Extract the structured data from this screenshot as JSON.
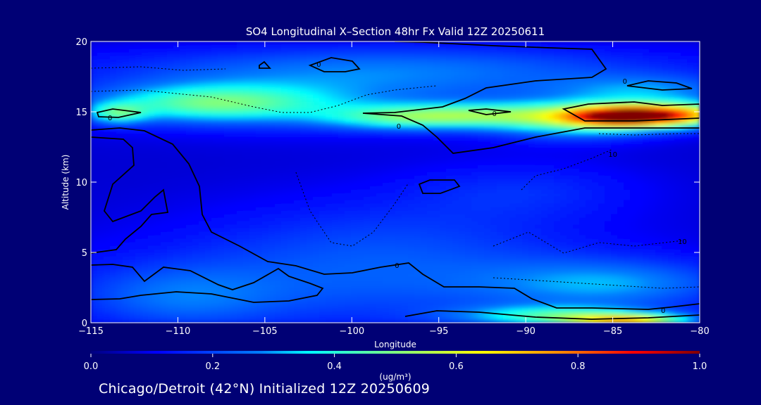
{
  "chart_data": {
    "type": "heatmap",
    "title": "SO4 Longitudinal X–Section 48hr  Fx Valid 12Z 20250611",
    "xlabel": "Longitude",
    "ylabel": "Altitude (km)",
    "xlim": [
      -115,
      -80
    ],
    "ylim": [
      0,
      20
    ],
    "x_ticks": [
      -115,
      -110,
      -105,
      -100,
      -95,
      -90,
      -85,
      -80
    ],
    "x_tick_labels": [
      "−115",
      "−110",
      "−105",
      "−100",
      "−95",
      "−90",
      "−85",
      "−80"
    ],
    "y_ticks": [
      0,
      5,
      10,
      15,
      20
    ],
    "y_tick_labels": [
      "0",
      "5",
      "10",
      "15",
      "20"
    ],
    "colorbar": {
      "label": "(ug/m³)",
      "min": 0.0,
      "max": 1.0,
      "ticks": [
        0.0,
        0.2,
        0.4,
        0.6,
        0.8,
        1.0
      ],
      "tick_labels": [
        "0.0",
        "0.2",
        "0.4",
        "0.6",
        "0.8",
        "1.0"
      ]
    },
    "field_blobs": [
      {
        "lon": -81.5,
        "alt": 14.8,
        "value": 0.55,
        "sx": 3.0,
        "sy": 0.6
      },
      {
        "lon": -84.5,
        "alt": 14.7,
        "value": 0.5,
        "sx": 2.2,
        "sy": 0.5
      },
      {
        "lon": -87.0,
        "alt": 14.4,
        "value": 0.3,
        "sx": 3.5,
        "sy": 0.9
      },
      {
        "lon": -108.0,
        "alt": 15.6,
        "value": 0.3,
        "sx": 4.5,
        "sy": 0.9
      },
      {
        "lon": -113.5,
        "alt": 14.9,
        "value": 0.25,
        "sx": 1.2,
        "sy": 0.5
      },
      {
        "lon": -97.0,
        "alt": 14.6,
        "value": 0.25,
        "sx": 3.5,
        "sy": 0.6
      },
      {
        "lon": -92.0,
        "alt": 14.8,
        "value": 0.22,
        "sx": 4.0,
        "sy": 0.6
      },
      {
        "lon": -102.0,
        "alt": 16.0,
        "value": 0.15,
        "sx": 10.0,
        "sy": 1.6
      },
      {
        "lon": -83.0,
        "alt": 16.5,
        "value": 0.18,
        "sx": 4.0,
        "sy": 0.8
      },
      {
        "lon": -97.0,
        "alt": 18.2,
        "value": 0.15,
        "sx": 12.0,
        "sy": 1.2
      },
      {
        "lon": -84.0,
        "alt": 0.2,
        "value": 0.45,
        "sx": 2.5,
        "sy": 0.3
      },
      {
        "lon": -88.0,
        "alt": 0.5,
        "value": 0.3,
        "sx": 4.0,
        "sy": 0.5
      },
      {
        "lon": -85.0,
        "alt": 2.8,
        "value": 0.18,
        "sx": 5.0,
        "sy": 1.2
      },
      {
        "lon": -100.0,
        "alt": 2.5,
        "value": 0.12,
        "sx": 12.0,
        "sy": 2.5
      },
      {
        "lon": -110.0,
        "alt": 1.8,
        "value": 0.12,
        "sx": 4.0,
        "sy": 1.5
      },
      {
        "lon": -90.0,
        "alt": 9.5,
        "value": 0.08,
        "sx": 5.0,
        "sy": 1.5
      },
      {
        "lon": -98.0,
        "alt": 6.0,
        "value": 0.09,
        "sx": 8.0,
        "sy": 2.5
      }
    ],
    "contour_labels": [
      {
        "lon": -113.9,
        "alt": 14.6,
        "text": "0"
      },
      {
        "lon": -101.9,
        "alt": 18.4,
        "text": "0"
      },
      {
        "lon": -97.3,
        "alt": 14.0,
        "text": "0"
      },
      {
        "lon": -91.8,
        "alt": 14.9,
        "text": "0"
      },
      {
        "lon": -84.3,
        "alt": 17.2,
        "text": "0"
      },
      {
        "lon": -97.4,
        "alt": 4.1,
        "text": "0"
      },
      {
        "lon": -82.1,
        "alt": 0.9,
        "text": "0"
      },
      {
        "lon": -85.0,
        "alt": 12.0,
        "text": "10"
      },
      {
        "lon": -81.0,
        "alt": 5.8,
        "text": "10"
      }
    ]
  },
  "footer": "Chicago/Detroit (42°N) Initialized 12Z 20250609",
  "colors": {
    "background": "#000075",
    "axis": "#ffffff",
    "contour": "#000000",
    "colormap": [
      "#00007f",
      "#0000ff",
      "#007fff",
      "#00ffff",
      "#7fff7f",
      "#ffff00",
      "#ff7f00",
      "#ff0000",
      "#7f0000"
    ]
  }
}
